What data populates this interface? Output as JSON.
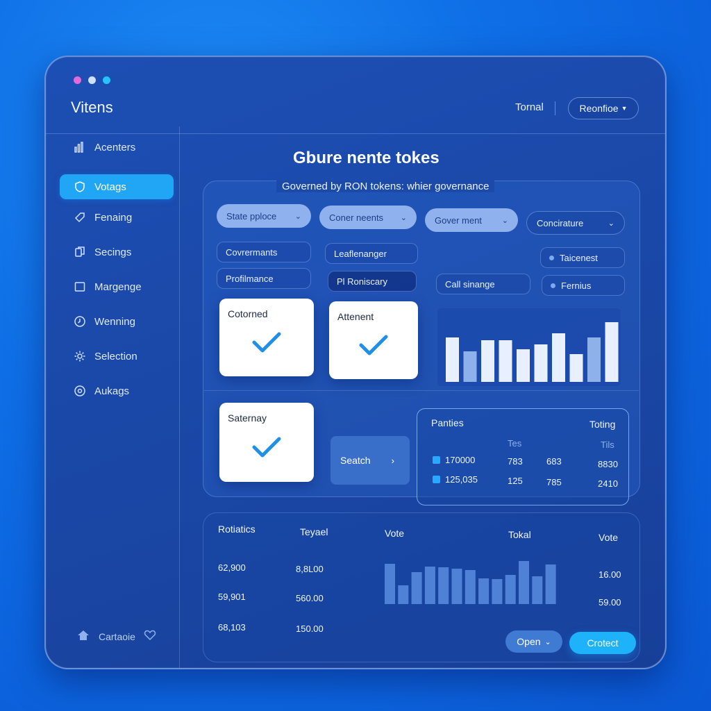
{
  "window": {
    "dots": [
      "#e06bd9",
      "#cfe0ff",
      "#28c3ff"
    ],
    "title": "Vitens"
  },
  "header": {
    "link": "Tornal",
    "dropdown": "Reonfioe"
  },
  "sidebar": {
    "items": [
      {
        "label": "Acenters",
        "icon": "bar-chart-icon"
      },
      {
        "label": "Votags",
        "icon": "shield-icon",
        "active": true
      },
      {
        "label": "Fenaing",
        "icon": "tag-icon"
      },
      {
        "label": "Secings",
        "icon": "copy-icon"
      },
      {
        "label": "Margenge",
        "icon": "square-icon"
      },
      {
        "label": "Wenning",
        "icon": "clock-icon"
      },
      {
        "label": "Selection",
        "icon": "gear-icon"
      },
      {
        "label": "Aukags",
        "icon": "settings-circle-icon"
      }
    ],
    "footer": {
      "label": "Cartaoie",
      "icons": [
        "home-icon",
        "heart-icon"
      ]
    }
  },
  "main": {
    "title": "Gbure nente tokes",
    "subtitle": "Governed by RON tokens: whier governance",
    "filters": [
      {
        "label": "State pploce",
        "style": "solid"
      },
      {
        "label": "Coner neents",
        "style": "solid"
      },
      {
        "label": "Gover ment",
        "style": "solid"
      },
      {
        "label": "Concirature",
        "style": "outline"
      }
    ],
    "tags": {
      "governments": "Covrermants",
      "leaflenanger": "Leaflenanger",
      "profilmance": "Profilmance",
      "ronicary": "Pl Roniscary",
      "call_sinange": "Call sinange",
      "taicenest": "Taicenest",
      "fernius": "Fernius"
    },
    "cards": [
      {
        "label": "Cotorned"
      },
      {
        "label": "Attenent"
      },
      {
        "label": "Saternay"
      }
    ],
    "search_label": "Seatch",
    "table": {
      "title": "Panties",
      "corner": "Toting",
      "sub_headers": [
        "Tes",
        "Tils"
      ],
      "rows": [
        [
          "170000",
          "783",
          "683",
          "8830"
        ],
        [
          "125,035",
          "125",
          "785",
          "2410"
        ]
      ]
    },
    "top_chart": [
      {
        "value": 64,
        "tone": "light"
      },
      {
        "value": 44,
        "tone": "mid"
      },
      {
        "value": 60,
        "tone": "light"
      },
      {
        "value": 60,
        "tone": "light"
      },
      {
        "value": 47,
        "tone": "light"
      },
      {
        "value": 54,
        "tone": "light"
      },
      {
        "value": 70,
        "tone": "light"
      },
      {
        "value": 40,
        "tone": "light"
      },
      {
        "value": 64,
        "tone": "mid"
      },
      {
        "value": 86,
        "tone": "light"
      }
    ]
  },
  "bottom": {
    "headers": [
      "Rotiatics",
      "Teyael",
      "Vote",
      "Tokal",
      "Vote"
    ],
    "col1": [
      "62,900",
      "59,901",
      "68,103"
    ],
    "col2": [
      "8,8L00",
      "560.00",
      "150.00"
    ],
    "right": [
      "16.00",
      "59.00"
    ],
    "bar_values": [
      58,
      27,
      46,
      54,
      53,
      51,
      49,
      37,
      36,
      42,
      62,
      40,
      57
    ],
    "open_label": "Open",
    "primary_label": "Crotect"
  }
}
